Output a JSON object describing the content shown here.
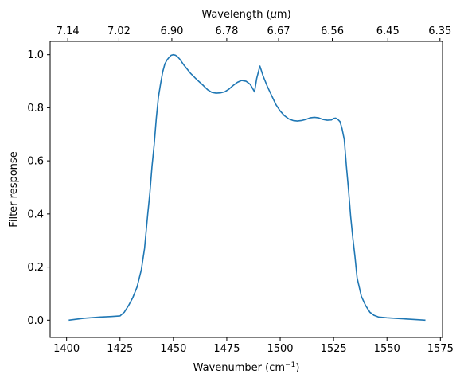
{
  "chart_data": {
    "type": "line",
    "title": "",
    "xlabel": "Wavenumber (cm",
    "xlabel_sup": "−1",
    "xlabel_suffix": ")",
    "ylabel": "Filter response",
    "top_xlabel": "Wavelength (",
    "top_xlabel_mu": "μ",
    "top_xlabel_suffix": "m)",
    "xlim": [
      1392.3,
      1576
    ],
    "ylim": [
      -0.065,
      1.05
    ],
    "xticks": [
      1400,
      1425,
      1450,
      1475,
      1500,
      1525,
      1550,
      1575
    ],
    "xtick_labels": [
      "1400",
      "1425",
      "1450",
      "1475",
      "1500",
      "1525",
      "1550",
      "1575"
    ],
    "yticks": [
      0.0,
      0.2,
      0.4,
      0.6,
      0.8,
      1.0
    ],
    "ytick_labels": [
      "0.0",
      "0.2",
      "0.4",
      "0.6",
      "0.8",
      "1.0"
    ],
    "top_ticks": [
      {
        "wavenumber": 1400.56,
        "label": "7.14"
      },
      {
        "wavenumber": 1424.5,
        "label": "7.02"
      },
      {
        "wavenumber": 1449.28,
        "label": "6.90"
      },
      {
        "wavenumber": 1474.98,
        "label": "6.78"
      },
      {
        "wavenumber": 1499.25,
        "label": "6.67"
      },
      {
        "wavenumber": 1524.39,
        "label": "6.56"
      },
      {
        "wavenumber": 1550.39,
        "label": "6.45"
      },
      {
        "wavenumber": 1574.8,
        "label": "6.35"
      }
    ],
    "grid": false,
    "line_color": "#1f77b4",
    "series": [
      {
        "x": [
          1401,
          1408,
          1416,
          1421,
          1425,
          1427,
          1429,
          1431,
          1433,
          1435,
          1436.5,
          1438,
          1439,
          1440,
          1441,
          1442,
          1443,
          1444,
          1445,
          1446,
          1447,
          1448,
          1449,
          1450,
          1451,
          1452,
          1453,
          1455,
          1458,
          1461,
          1464,
          1466,
          1468,
          1470,
          1472,
          1474,
          1476,
          1478,
          1480,
          1482,
          1484,
          1486,
          1488,
          1489,
          1490.5,
          1492,
          1494,
          1496,
          1498,
          1500,
          1502,
          1504,
          1506,
          1508,
          1510,
          1512,
          1514,
          1516,
          1518,
          1520,
          1522,
          1524,
          1525,
          1526,
          1527,
          1528,
          1529,
          1530,
          1531,
          1532,
          1533,
          1534,
          1535,
          1536,
          1538,
          1540,
          1542,
          1544,
          1546,
          1550,
          1556,
          1562,
          1568
        ],
        "y": [
          0.0,
          0.007,
          0.012,
          0.014,
          0.016,
          0.03,
          0.055,
          0.085,
          0.125,
          0.19,
          0.27,
          0.4,
          0.48,
          0.58,
          0.66,
          0.76,
          0.84,
          0.89,
          0.935,
          0.965,
          0.98,
          0.99,
          0.998,
          1.0,
          0.998,
          0.992,
          0.983,
          0.96,
          0.93,
          0.906,
          0.884,
          0.868,
          0.858,
          0.855,
          0.856,
          0.86,
          0.87,
          0.884,
          0.896,
          0.903,
          0.9,
          0.888,
          0.86,
          0.91,
          0.957,
          0.92,
          0.88,
          0.846,
          0.812,
          0.788,
          0.77,
          0.758,
          0.752,
          0.75,
          0.752,
          0.756,
          0.762,
          0.764,
          0.762,
          0.756,
          0.753,
          0.754,
          0.76,
          0.761,
          0.756,
          0.748,
          0.72,
          0.68,
          0.58,
          0.49,
          0.39,
          0.31,
          0.24,
          0.16,
          0.09,
          0.055,
          0.03,
          0.018,
          0.012,
          0.009,
          0.006,
          0.003,
          0.0
        ]
      }
    ]
  }
}
